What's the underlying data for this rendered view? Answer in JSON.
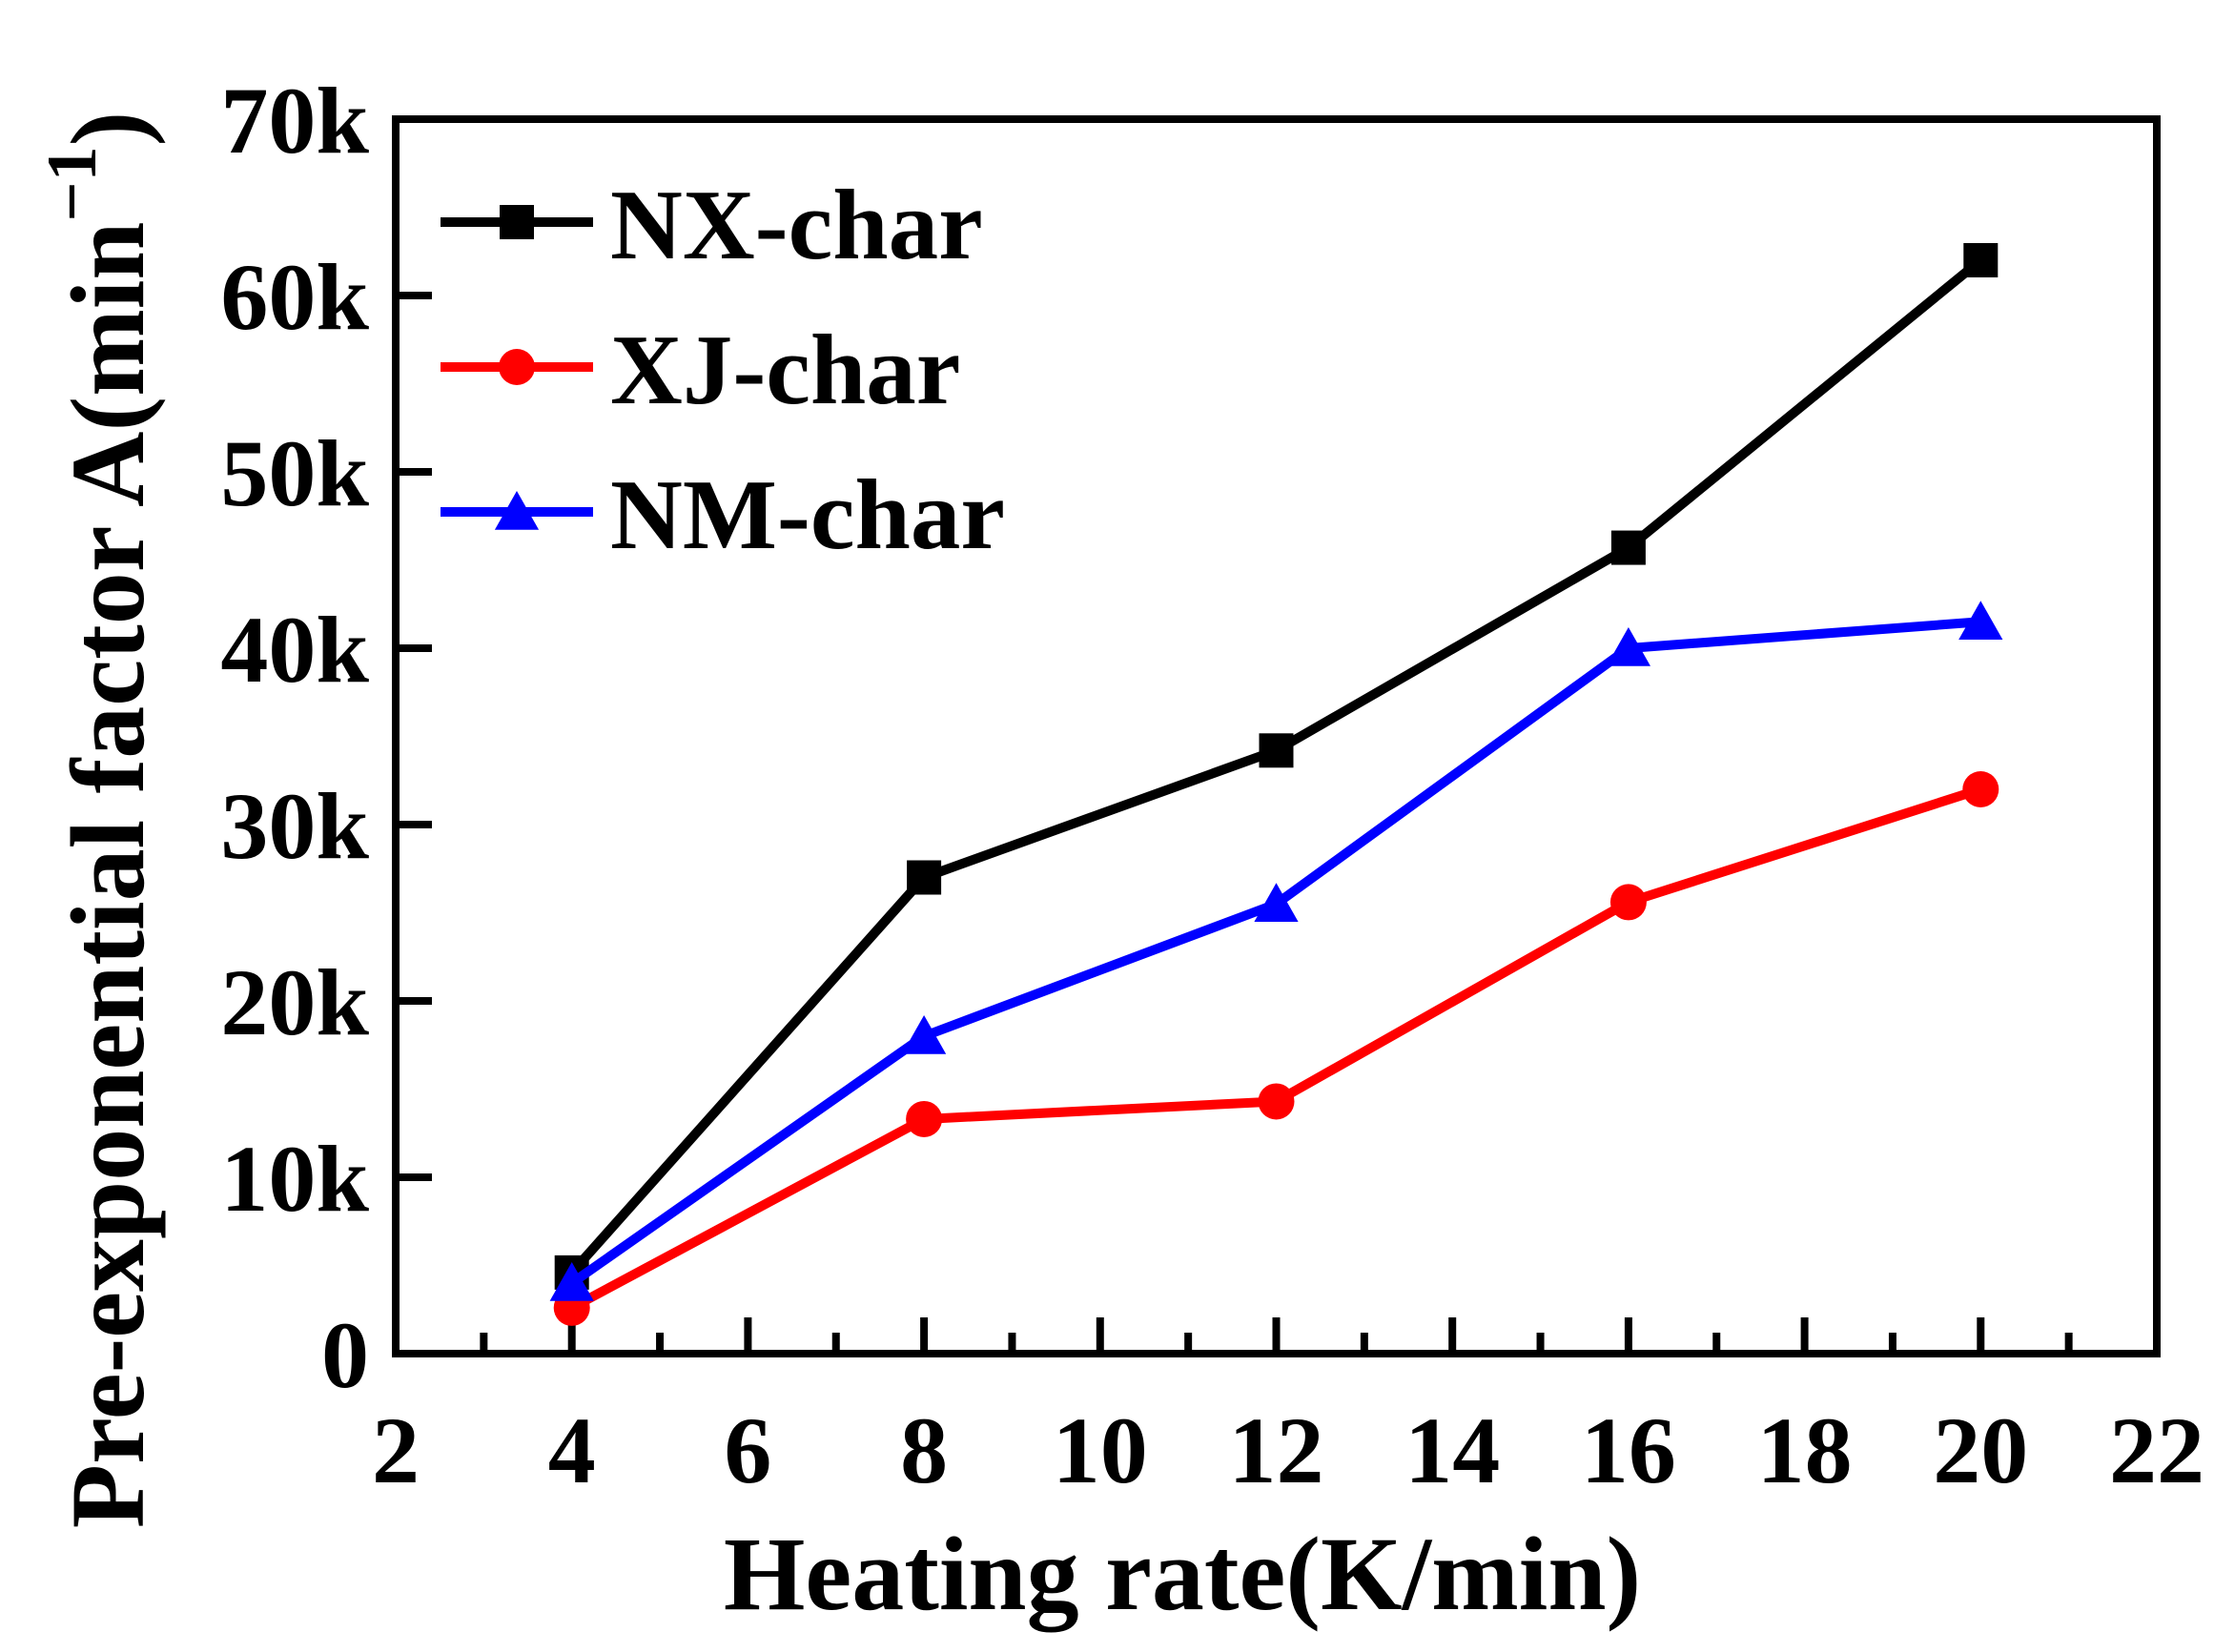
{
  "chart_data": {
    "type": "line",
    "title": "",
    "xlabel": "Heating rate(K/min)",
    "ylabel_main": "Pre-exponential factor A(min",
    "ylabel_sup": "−1",
    "ylabel_close": ")",
    "xlim": [
      2,
      22
    ],
    "ylim": [
      0,
      70000
    ],
    "x_major_ticks": [
      2,
      4,
      6,
      8,
      10,
      12,
      14,
      16,
      18,
      20,
      22
    ],
    "x_tick_labels": [
      "2",
      "4",
      "6",
      "8",
      "10",
      "12",
      "14",
      "16",
      "18",
      "20",
      "22"
    ],
    "x_minor_ticks": [
      3,
      5,
      7,
      9,
      11,
      13,
      15,
      17,
      19,
      21
    ],
    "y_major_ticks": [
      0,
      10000,
      20000,
      30000,
      40000,
      50000,
      60000,
      70000
    ],
    "y_tick_labels": [
      "0",
      "10k",
      "20k",
      "30k",
      "40k",
      "50k",
      "60k",
      "70k"
    ],
    "grid": false,
    "legend_position": "top-left",
    "x": [
      4,
      8,
      12,
      16,
      20
    ],
    "series": [
      {
        "name": "NX-char",
        "color": "#000000",
        "marker": "square",
        "values": [
          4600,
          27000,
          34200,
          45700,
          62000
        ]
      },
      {
        "name": "XJ-char",
        "color": "#ff0000",
        "marker": "circle",
        "values": [
          2600,
          13300,
          14300,
          25600,
          32000
        ]
      },
      {
        "name": "NM-char",
        "color": "#0000ff",
        "marker": "triangle",
        "values": [
          4000,
          18000,
          25500,
          40000,
          41500
        ]
      }
    ]
  }
}
